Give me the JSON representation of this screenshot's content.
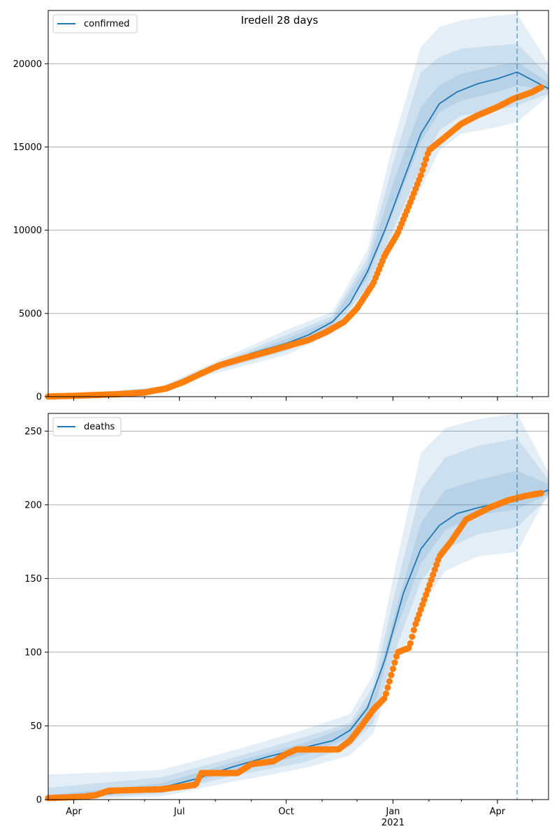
{
  "figure": {
    "title": "Iredell 28 days"
  },
  "chart_data": [
    {
      "type": "line",
      "legend": "top-left",
      "legend_label": "confirmed",
      "grid": "horizontal",
      "xlim": [
        "2020-03-10",
        "2021-05-15"
      ],
      "ylim": [
        0,
        23200
      ],
      "yticks": [
        0,
        5000,
        10000,
        15000,
        20000
      ],
      "ytick_labels": [
        "0",
        "5000",
        "10000",
        "15000",
        "20000"
      ],
      "xticks": [
        "2020-04-01",
        "2020-07-01",
        "2020-10-01",
        "2021-01-01",
        "2021-04-01"
      ],
      "xtick_labels": [
        "",
        "",
        "",
        "",
        ""
      ],
      "forecast_date": "2021-04-18",
      "colors": {
        "model": "#1f77b4",
        "observed": "#ff7f0e",
        "band": "#1f77b4"
      },
      "model_mean": {
        "x": [
          "2020-03-10",
          "2020-04-15",
          "2020-05-15",
          "2020-06-15",
          "2020-07-10",
          "2020-08-01",
          "2020-09-01",
          "2020-10-01",
          "2020-10-20",
          "2020-11-10",
          "2020-11-25",
          "2020-12-10",
          "2020-12-25",
          "2021-01-10",
          "2021-01-25",
          "2021-02-10",
          "2021-02-25",
          "2021-03-15",
          "2021-04-01",
          "2021-04-18",
          "2021-05-15"
        ],
        "y": [
          0,
          80,
          180,
          500,
          1100,
          1800,
          2600,
          3200,
          3700,
          4500,
          5600,
          7500,
          10000,
          13000,
          15800,
          17600,
          18300,
          18800,
          19100,
          19500,
          18500
        ]
      },
      "bands": [
        {
          "name": "outer",
          "x": [
            "2020-03-10",
            "2020-06-15",
            "2020-08-01",
            "2020-10-01",
            "2020-11-10",
            "2020-12-10",
            "2021-01-01",
            "2021-01-25",
            "2021-02-10",
            "2021-03-01",
            "2021-04-01",
            "2021-04-18",
            "2021-05-15"
          ],
          "upper": [
            0,
            600,
            2100,
            4000,
            5100,
            8800,
            15200,
            21000,
            22200,
            22600,
            22900,
            23000,
            20000
          ],
          "lower": [
            0,
            400,
            1400,
            2500,
            3800,
            6200,
            9000,
            12500,
            14800,
            15800,
            16200,
            16500,
            18100
          ]
        },
        {
          "name": "middle",
          "x": [
            "2020-03-10",
            "2020-06-15",
            "2020-08-01",
            "2020-10-01",
            "2020-11-10",
            "2020-12-10",
            "2021-01-01",
            "2021-01-25",
            "2021-02-10",
            "2021-03-01",
            "2021-04-01",
            "2021-04-18",
            "2021-05-15"
          ],
          "upper": [
            0,
            560,
            1950,
            3700,
            4850,
            8300,
            14000,
            19500,
            20400,
            20900,
            21100,
            21200,
            19300
          ],
          "lower": [
            0,
            440,
            1550,
            2750,
            4000,
            6600,
            10000,
            13800,
            16000,
            16900,
            17200,
            17500,
            18200
          ]
        },
        {
          "name": "inner",
          "x": [
            "2020-03-10",
            "2020-06-15",
            "2020-08-01",
            "2020-10-01",
            "2020-11-10",
            "2020-12-10",
            "2021-01-01",
            "2021-01-25",
            "2021-02-10",
            "2021-03-01",
            "2021-04-01",
            "2021-04-18",
            "2021-05-15"
          ],
          "upper": [
            0,
            530,
            1870,
            3450,
            4650,
            7900,
            12800,
            17400,
            18700,
            19400,
            19900,
            20100,
            18900
          ],
          "lower": [
            0,
            470,
            1700,
            3000,
            4300,
            7100,
            11000,
            15300,
            17100,
            17800,
            18300,
            18700,
            18400
          ]
        }
      ],
      "observed": {
        "x": [
          "2020-03-10",
          "2020-04-01",
          "2020-04-20",
          "2020-05-10",
          "2020-06-01",
          "2020-06-20",
          "2020-07-05",
          "2020-07-20",
          "2020-08-05",
          "2020-08-25",
          "2020-09-15",
          "2020-10-05",
          "2020-10-20",
          "2020-11-05",
          "2020-11-20",
          "2020-12-01",
          "2020-12-15",
          "2020-12-25",
          "2021-01-05",
          "2021-01-15",
          "2021-01-25",
          "2021-02-01",
          "2021-02-15",
          "2021-03-01",
          "2021-03-15",
          "2021-04-01",
          "2021-04-15",
          "2021-05-01",
          "2021-05-09"
        ],
        "y": [
          10,
          50,
          100,
          150,
          250,
          500,
          900,
          1400,
          1900,
          2300,
          2700,
          3100,
          3400,
          3900,
          4500,
          5300,
          6800,
          8500,
          9800,
          11500,
          13300,
          14800,
          15600,
          16400,
          16900,
          17400,
          17900,
          18300,
          18600
        ]
      }
    },
    {
      "type": "line",
      "legend": "top-left",
      "legend_label": "deaths",
      "grid": "horizontal",
      "xlim": [
        "2020-03-10",
        "2021-05-15"
      ],
      "ylim": [
        0,
        262
      ],
      "yticks": [
        0,
        50,
        100,
        150,
        200,
        250
      ],
      "ytick_labels": [
        "0",
        "50",
        "100",
        "150",
        "200",
        "250"
      ],
      "xticks": [
        "2020-04-01",
        "2020-07-01",
        "2020-10-01",
        "2021-01-01",
        "2021-04-01"
      ],
      "xtick_labels": [
        "Apr",
        "Jul",
        "Oct",
        "Jan\n2021",
        "Apr"
      ],
      "forecast_date": "2021-04-18",
      "colors": {
        "model": "#1f77b4",
        "observed": "#ff7f0e",
        "band": "#1f77b4"
      },
      "model_mean": {
        "x": [
          "2020-03-10",
          "2020-05-01",
          "2020-06-15",
          "2020-07-15",
          "2020-08-15",
          "2020-09-15",
          "2020-10-15",
          "2020-11-10",
          "2020-11-25",
          "2020-12-10",
          "2020-12-25",
          "2021-01-10",
          "2021-01-25",
          "2021-02-10",
          "2021-02-25",
          "2021-03-15",
          "2021-04-01",
          "2021-04-18",
          "2021-05-15"
        ],
        "y": [
          1,
          4,
          8,
          14,
          22,
          29,
          35,
          40,
          47,
          62,
          95,
          140,
          170,
          186,
          194,
          198,
          201,
          203,
          210
        ]
      },
      "bands": [
        {
          "name": "outer",
          "x": [
            "2020-03-10",
            "2020-06-15",
            "2020-08-15",
            "2020-10-15",
            "2020-11-25",
            "2020-12-15",
            "2021-01-01",
            "2021-01-25",
            "2021-02-15",
            "2021-03-15",
            "2021-04-18",
            "2021-05-15"
          ],
          "upper": [
            17,
            20,
            33,
            47,
            58,
            85,
            150,
            235,
            252,
            258,
            262,
            222
          ],
          "lower": [
            0,
            2,
            12,
            21,
            30,
            45,
            85,
            130,
            155,
            165,
            168,
            208
          ]
        },
        {
          "name": "middle",
          "x": [
            "2020-03-10",
            "2020-06-15",
            "2020-08-15",
            "2020-10-15",
            "2020-11-25",
            "2020-12-15",
            "2021-01-01",
            "2021-01-25",
            "2021-02-15",
            "2021-03-15",
            "2021-04-18",
            "2021-05-15"
          ],
          "upper": [
            8,
            15,
            28,
            42,
            52,
            77,
            135,
            210,
            232,
            240,
            245,
            217
          ],
          "lower": [
            0,
            4,
            16,
            25,
            36,
            52,
            97,
            148,
            170,
            180,
            185,
            205
          ]
        },
        {
          "name": "inner",
          "x": [
            "2020-03-10",
            "2020-06-15",
            "2020-08-15",
            "2020-10-15",
            "2020-11-25",
            "2020-12-15",
            "2021-01-01",
            "2021-01-25",
            "2021-02-15",
            "2021-03-15",
            "2021-04-18",
            "2021-05-15"
          ],
          "upper": [
            3,
            11,
            25,
            38,
            50,
            70,
            122,
            188,
            210,
            217,
            223,
            214
          ],
          "lower": [
            0,
            6,
            19,
            30,
            42,
            60,
            110,
            160,
            183,
            193,
            197,
            207
          ]
        }
      ],
      "observed": {
        "x": [
          "2020-03-10",
          "2020-04-10",
          "2020-04-20",
          "2020-05-01",
          "2020-06-15",
          "2020-07-15",
          "2020-07-20",
          "2020-08-20",
          "2020-09-01",
          "2020-09-20",
          "2020-10-01",
          "2020-10-10",
          "2020-11-15",
          "2020-11-25",
          "2020-12-05",
          "2020-12-15",
          "2020-12-25",
          "2021-01-05",
          "2021-01-15",
          "2021-01-20",
          "2021-01-30",
          "2021-02-10",
          "2021-02-20",
          "2021-03-05",
          "2021-03-25",
          "2021-04-10",
          "2021-04-25",
          "2021-05-09"
        ],
        "y": [
          1,
          2,
          3,
          6,
          7,
          10,
          18,
          18,
          24,
          26,
          31,
          34,
          34,
          40,
          50,
          61,
          69,
          100,
          103,
          118,
          140,
          165,
          175,
          190,
          198,
          203,
          206,
          208
        ]
      }
    }
  ]
}
